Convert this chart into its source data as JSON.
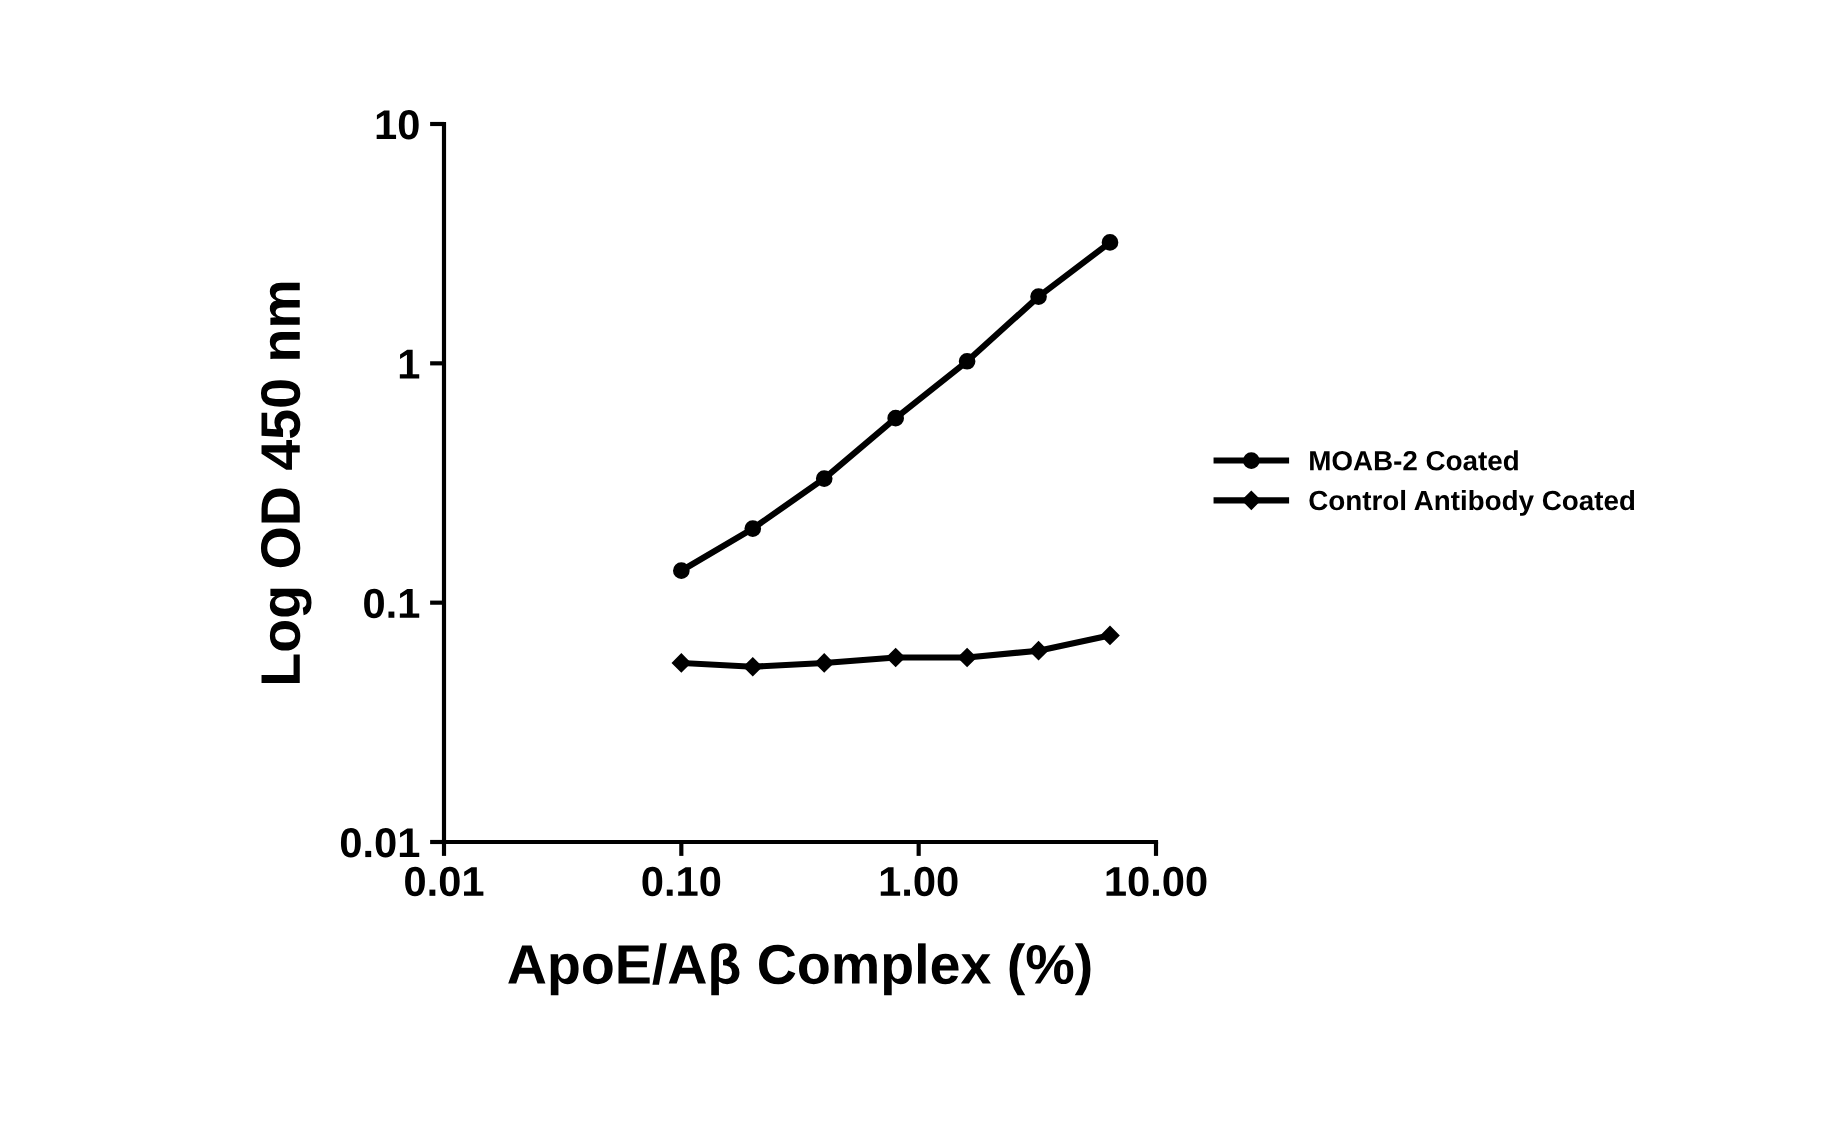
{
  "chart_data": {
    "type": "line",
    "xlabel": "ApoE/Aβ Complex (%)",
    "ylabel": "Log OD 450 nm",
    "x": [
      0.1,
      0.2,
      0.4,
      0.8,
      1.6,
      3.2,
      6.4
    ],
    "series": [
      {
        "name": "MOAB-2 Coated",
        "color": "#000000",
        "marker": "circle",
        "values": [
          0.136,
          0.204,
          0.33,
          0.59,
          1.02,
          1.9,
          3.2
        ]
      },
      {
        "name": "Control Antibody Coated",
        "color": "#000000",
        "marker": "diamond",
        "values": [
          0.056,
          0.054,
          0.056,
          0.059,
          0.059,
          0.063,
          0.073
        ]
      }
    ],
    "log": "xy",
    "xlim": [
      0.01,
      10
    ],
    "ylim": [
      0.01,
      10
    ],
    "xticks": [
      {
        "value": 0.01,
        "label": "0.01"
      },
      {
        "value": 0.1,
        "label": "0.10"
      },
      {
        "value": 1,
        "label": "1.00"
      },
      {
        "value": 10,
        "label": "10.00"
      }
    ],
    "yticks": [
      0.01,
      0.1,
      1,
      10
    ],
    "grid": false,
    "legend": "right",
    "line_style": "solid"
  }
}
